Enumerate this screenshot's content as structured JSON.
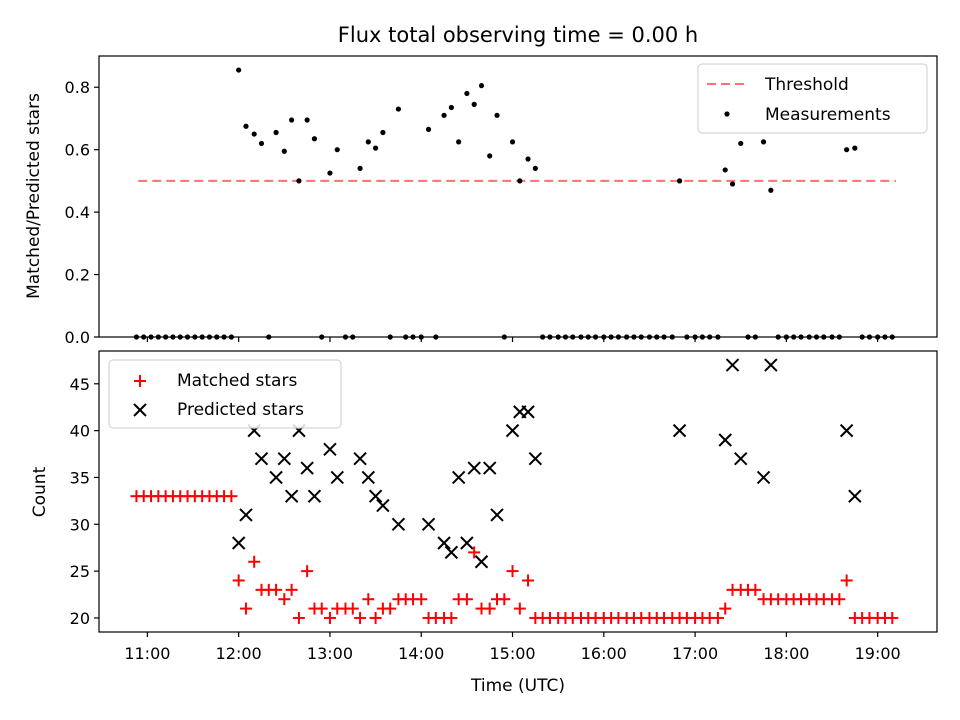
{
  "chart_data": [
    {
      "type": "scatter",
      "title": "Flux total observing time = 0.00 h",
      "xlabel": "",
      "ylabel": "Matched/Predicted stars",
      "xlim": [
        10.47,
        19.65
      ],
      "ylim": [
        0,
        0.9
      ],
      "yticks": [
        {
          "value": 0.0,
          "label": "0.0"
        },
        {
          "value": 0.2,
          "label": "0.2"
        },
        {
          "value": 0.4,
          "label": "0.4"
        },
        {
          "value": 0.6,
          "label": "0.6"
        },
        {
          "value": 0.8,
          "label": "0.8"
        }
      ],
      "xticks": [
        11,
        12,
        13,
        14,
        15,
        16,
        17,
        18,
        19
      ],
      "legend": [
        "Threshold",
        "Measurements"
      ],
      "legend_position": "top-right",
      "threshold": {
        "name": "Threshold",
        "y": 0.5,
        "x_start": 10.9,
        "x_end": 19.2,
        "color": "#ff7070"
      },
      "series": [
        {
          "name": "Measurements",
          "color": "#000000",
          "marker": "dot",
          "points": [
            [
              10.88,
              0
            ],
            [
              10.96,
              0
            ],
            [
              11.04,
              0
            ],
            [
              11.12,
              0
            ],
            [
              11.2,
              0
            ],
            [
              11.28,
              0
            ],
            [
              11.36,
              0
            ],
            [
              11.44,
              0
            ],
            [
              11.52,
              0
            ],
            [
              11.6,
              0
            ],
            [
              11.68,
              0
            ],
            [
              11.76,
              0
            ],
            [
              11.84,
              0
            ],
            [
              11.92,
              0
            ],
            [
              12.0,
              0.855
            ],
            [
              12.08,
              0.675
            ],
            [
              12.17,
              0.65
            ],
            [
              12.25,
              0.62
            ],
            [
              12.33,
              0
            ],
            [
              12.41,
              0.655
            ],
            [
              12.5,
              0.595
            ],
            [
              12.58,
              0.695
            ],
            [
              12.66,
              0.5
            ],
            [
              12.75,
              0.695
            ],
            [
              12.83,
              0.635
            ],
            [
              12.91,
              0
            ],
            [
              13.0,
              0.525
            ],
            [
              13.08,
              0.6
            ],
            [
              13.17,
              0
            ],
            [
              13.25,
              0
            ],
            [
              13.33,
              0.54
            ],
            [
              13.42,
              0.625
            ],
            [
              13.5,
              0.605
            ],
            [
              13.58,
              0.655
            ],
            [
              13.66,
              0
            ],
            [
              13.75,
              0.73
            ],
            [
              13.83,
              0
            ],
            [
              13.91,
              0
            ],
            [
              14.0,
              0
            ],
            [
              14.08,
              0.665
            ],
            [
              14.16,
              0
            ],
            [
              14.25,
              0.71
            ],
            [
              14.33,
              0.735
            ],
            [
              14.41,
              0.625
            ],
            [
              14.5,
              0.78
            ],
            [
              14.58,
              0.745
            ],
            [
              14.66,
              0.805
            ],
            [
              14.75,
              0.58
            ],
            [
              14.83,
              0.71
            ],
            [
              14.91,
              0
            ],
            [
              15.0,
              0.625
            ],
            [
              15.08,
              0.5
            ],
            [
              15.17,
              0.57
            ],
            [
              15.25,
              0.54
            ],
            [
              15.33,
              0
            ],
            [
              15.41,
              0
            ],
            [
              15.5,
              0
            ],
            [
              15.58,
              0
            ],
            [
              15.66,
              0
            ],
            [
              15.75,
              0
            ],
            [
              15.83,
              0
            ],
            [
              15.91,
              0
            ],
            [
              16.0,
              0
            ],
            [
              16.08,
              0
            ],
            [
              16.16,
              0
            ],
            [
              16.25,
              0
            ],
            [
              16.33,
              0
            ],
            [
              16.41,
              0
            ],
            [
              16.5,
              0
            ],
            [
              16.58,
              0
            ],
            [
              16.66,
              0
            ],
            [
              16.75,
              0
            ],
            [
              16.83,
              0.5
            ],
            [
              16.91,
              0
            ],
            [
              17.0,
              0
            ],
            [
              17.08,
              0
            ],
            [
              17.16,
              0
            ],
            [
              17.25,
              0
            ],
            [
              17.33,
              0.535
            ],
            [
              17.41,
              0.49
            ],
            [
              17.5,
              0.62
            ],
            [
              17.58,
              0
            ],
            [
              17.66,
              0
            ],
            [
              17.75,
              0.625
            ],
            [
              17.83,
              0.47
            ],
            [
              17.91,
              0
            ],
            [
              18.0,
              0
            ],
            [
              18.08,
              0
            ],
            [
              18.16,
              0
            ],
            [
              18.25,
              0
            ],
            [
              18.33,
              0
            ],
            [
              18.41,
              0
            ],
            [
              18.5,
              0
            ],
            [
              18.58,
              0
            ],
            [
              18.66,
              0.6
            ],
            [
              18.75,
              0.605
            ],
            [
              18.83,
              0
            ],
            [
              18.91,
              0
            ],
            [
              19.0,
              0
            ],
            [
              19.08,
              0
            ],
            [
              19.16,
              0
            ]
          ]
        }
      ]
    },
    {
      "type": "scatter",
      "title": "",
      "xlabel": "Time (UTC)",
      "ylabel": "Count",
      "xlim": [
        10.47,
        19.65
      ],
      "ylim": [
        18.5,
        48.5
      ],
      "yticks": [
        {
          "value": 20,
          "label": "20"
        },
        {
          "value": 25,
          "label": "25"
        },
        {
          "value": 30,
          "label": "30"
        },
        {
          "value": 35,
          "label": "35"
        },
        {
          "value": 40,
          "label": "40"
        },
        {
          "value": 45,
          "label": "45"
        }
      ],
      "xticks": [
        {
          "value": 11,
          "label": "11:00"
        },
        {
          "value": 12,
          "label": "12:00"
        },
        {
          "value": 13,
          "label": "13:00"
        },
        {
          "value": 14,
          "label": "14:00"
        },
        {
          "value": 15,
          "label": "15:00"
        },
        {
          "value": 16,
          "label": "16:00"
        },
        {
          "value": 17,
          "label": "17:00"
        },
        {
          "value": 18,
          "label": "18:00"
        },
        {
          "value": 19,
          "label": "19:00"
        }
      ],
      "legend": [
        "Matched stars",
        "Predicted stars"
      ],
      "legend_position": "top-left",
      "series": [
        {
          "name": "Matched stars",
          "color": "#ff0000",
          "marker": "plus",
          "points": [
            [
              10.88,
              33
            ],
            [
              10.96,
              33
            ],
            [
              11.04,
              33
            ],
            [
              11.12,
              33
            ],
            [
              11.2,
              33
            ],
            [
              11.28,
              33
            ],
            [
              11.36,
              33
            ],
            [
              11.44,
              33
            ],
            [
              11.52,
              33
            ],
            [
              11.6,
              33
            ],
            [
              11.68,
              33
            ],
            [
              11.76,
              33
            ],
            [
              11.84,
              33
            ],
            [
              11.92,
              33
            ],
            [
              12.0,
              24
            ],
            [
              12.08,
              21
            ],
            [
              12.17,
              26
            ],
            [
              12.25,
              23
            ],
            [
              12.33,
              23
            ],
            [
              12.41,
              23
            ],
            [
              12.5,
              22
            ],
            [
              12.58,
              23
            ],
            [
              12.66,
              20
            ],
            [
              12.75,
              25
            ],
            [
              12.83,
              21
            ],
            [
              12.91,
              21
            ],
            [
              13.0,
              20
            ],
            [
              13.08,
              21
            ],
            [
              13.17,
              21
            ],
            [
              13.25,
              21
            ],
            [
              13.33,
              20
            ],
            [
              13.42,
              22
            ],
            [
              13.5,
              20
            ],
            [
              13.58,
              21
            ],
            [
              13.66,
              21
            ],
            [
              13.75,
              22
            ],
            [
              13.83,
              22
            ],
            [
              13.91,
              22
            ],
            [
              14.0,
              22
            ],
            [
              14.08,
              20
            ],
            [
              14.16,
              20
            ],
            [
              14.25,
              20
            ],
            [
              14.33,
              20
            ],
            [
              14.41,
              22
            ],
            [
              14.5,
              22
            ],
            [
              14.58,
              27
            ],
            [
              14.66,
              21
            ],
            [
              14.75,
              21
            ],
            [
              14.83,
              22
            ],
            [
              14.91,
              22
            ],
            [
              15.0,
              25
            ],
            [
              15.08,
              21
            ],
            [
              15.17,
              24
            ],
            [
              15.25,
              20
            ],
            [
              15.33,
              20
            ],
            [
              15.41,
              20
            ],
            [
              15.5,
              20
            ],
            [
              15.58,
              20
            ],
            [
              15.66,
              20
            ],
            [
              15.75,
              20
            ],
            [
              15.83,
              20
            ],
            [
              15.91,
              20
            ],
            [
              16.0,
              20
            ],
            [
              16.08,
              20
            ],
            [
              16.16,
              20
            ],
            [
              16.25,
              20
            ],
            [
              16.33,
              20
            ],
            [
              16.41,
              20
            ],
            [
              16.5,
              20
            ],
            [
              16.58,
              20
            ],
            [
              16.66,
              20
            ],
            [
              16.75,
              20
            ],
            [
              16.83,
              20
            ],
            [
              16.91,
              20
            ],
            [
              17.0,
              20
            ],
            [
              17.08,
              20
            ],
            [
              17.16,
              20
            ],
            [
              17.25,
              20
            ],
            [
              17.33,
              21
            ],
            [
              17.41,
              23
            ],
            [
              17.5,
              23
            ],
            [
              17.58,
              23
            ],
            [
              17.66,
              23
            ],
            [
              17.75,
              22
            ],
            [
              17.83,
              22
            ],
            [
              17.91,
              22
            ],
            [
              18.0,
              22
            ],
            [
              18.08,
              22
            ],
            [
              18.16,
              22
            ],
            [
              18.25,
              22
            ],
            [
              18.33,
              22
            ],
            [
              18.41,
              22
            ],
            [
              18.5,
              22
            ],
            [
              18.58,
              22
            ],
            [
              18.66,
              24
            ],
            [
              18.75,
              20
            ],
            [
              18.83,
              20
            ],
            [
              18.91,
              20
            ],
            [
              19.0,
              20
            ],
            [
              19.08,
              20
            ],
            [
              19.16,
              20
            ]
          ]
        },
        {
          "name": "Predicted stars",
          "color": "#000000",
          "marker": "x",
          "points": [
            [
              12.0,
              28
            ],
            [
              12.08,
              31
            ],
            [
              12.17,
              40
            ],
            [
              12.25,
              37
            ],
            [
              12.41,
              35
            ],
            [
              12.5,
              37
            ],
            [
              12.58,
              33
            ],
            [
              12.66,
              40
            ],
            [
              12.75,
              36
            ],
            [
              12.83,
              33
            ],
            [
              13.0,
              38
            ],
            [
              13.08,
              35
            ],
            [
              13.33,
              37
            ],
            [
              13.42,
              35
            ],
            [
              13.5,
              33
            ],
            [
              13.58,
              32
            ],
            [
              13.75,
              30
            ],
            [
              14.08,
              30
            ],
            [
              14.25,
              28
            ],
            [
              14.33,
              27
            ],
            [
              14.41,
              35
            ],
            [
              14.5,
              28
            ],
            [
              14.58,
              36
            ],
            [
              14.66,
              26
            ],
            [
              14.75,
              36
            ],
            [
              14.83,
              31
            ],
            [
              15.0,
              40
            ],
            [
              15.08,
              42
            ],
            [
              15.17,
              42
            ],
            [
              15.25,
              37
            ],
            [
              16.83,
              40
            ],
            [
              17.33,
              39
            ],
            [
              17.41,
              47
            ],
            [
              17.5,
              37
            ],
            [
              17.75,
              35
            ],
            [
              17.83,
              47
            ],
            [
              18.66,
              40
            ],
            [
              18.75,
              33
            ]
          ]
        }
      ]
    }
  ]
}
